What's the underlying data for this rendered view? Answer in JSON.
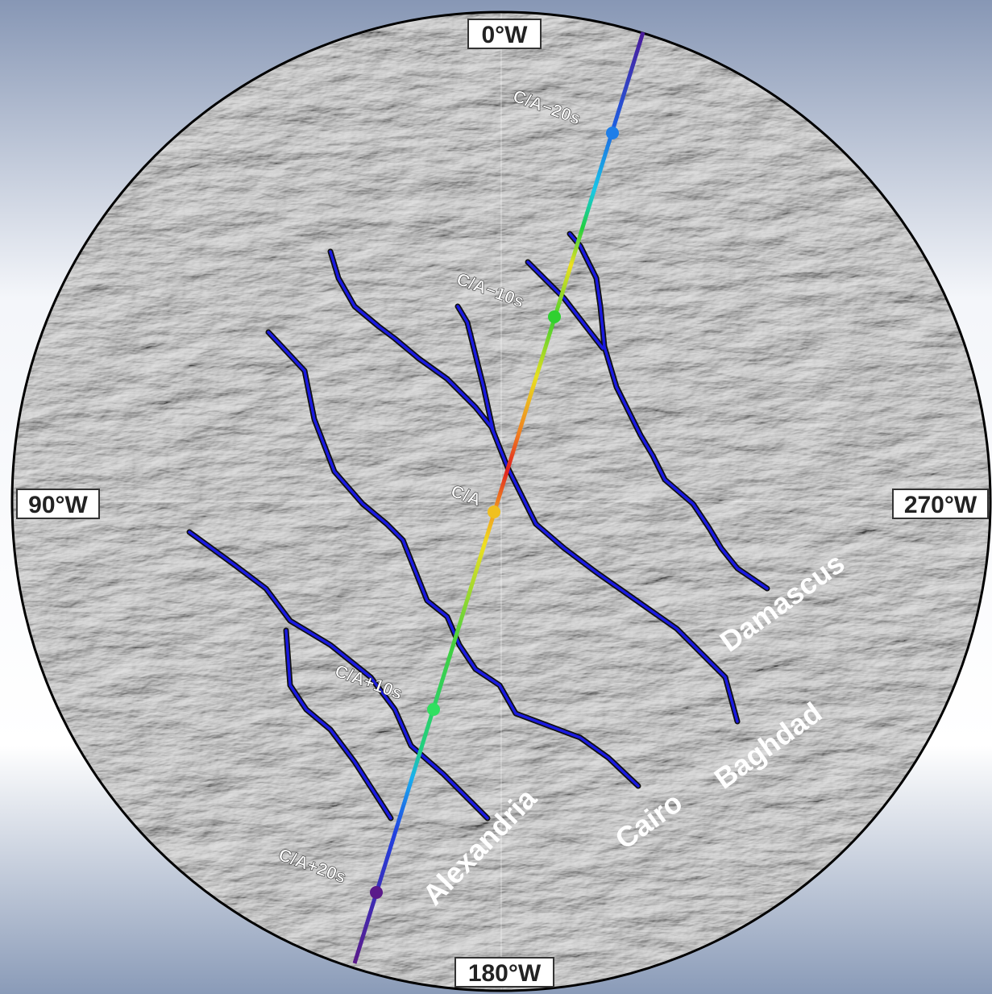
{
  "axis_labels": {
    "top": "0°W",
    "left": "90°W",
    "right": "270°W",
    "bottom": "180°W"
  },
  "trajectory_markers": [
    "C/A−20s",
    "C/A−10s",
    "C/A",
    "C/A+10s",
    "C/A+20s"
  ],
  "fractures": [
    "Damascus",
    "Baghdad",
    "Cairo",
    "Alexandria"
  ]
}
